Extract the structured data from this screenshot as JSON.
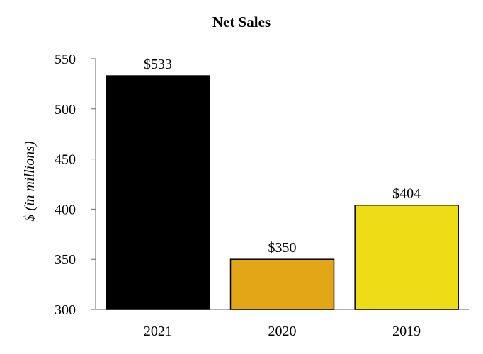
{
  "chart_data": {
    "type": "bar",
    "title": "Net Sales",
    "xlabel": "",
    "ylabel": "$ (in millions)",
    "categories": [
      "2021",
      "2020",
      "2019"
    ],
    "values": [
      533,
      350,
      404
    ],
    "data_labels": [
      "$533",
      "$350",
      "$404"
    ],
    "colors": [
      "#000000",
      "#E3A617",
      "#EEDD16"
    ],
    "ylim": [
      300,
      550
    ],
    "yticks": [
      300,
      350,
      400,
      450,
      500,
      550
    ],
    "ytick_labels": [
      "300",
      "350",
      "400",
      "450",
      "500",
      "550"
    ],
    "grid": false,
    "legend": "none"
  }
}
